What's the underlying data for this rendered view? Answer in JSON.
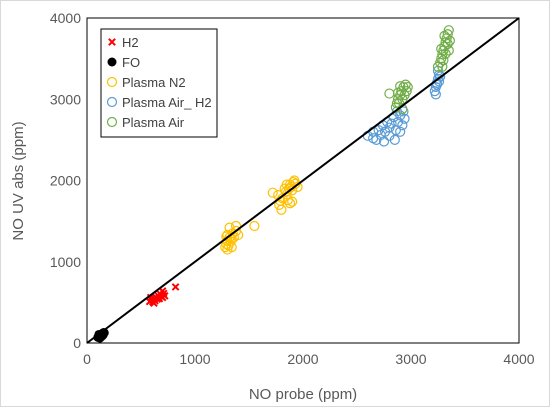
{
  "chart_data": {
    "type": "scatter",
    "title": "",
    "xlabel": "NO probe (ppm)",
    "ylabel": "NO UV abs (ppm)",
    "xlim": [
      0,
      4000
    ],
    "ylim": [
      0,
      4000
    ],
    "xticks": [
      "0",
      "1000",
      "2000",
      "3000",
      "4000"
    ],
    "yticks": [
      "0",
      "1000",
      "2000",
      "3000",
      "4000"
    ],
    "grid": false,
    "legend_position": "top-left inside",
    "reference_line": {
      "x": [
        0,
        4000
      ],
      "y": [
        0,
        4000
      ],
      "color": "#000000"
    },
    "series": [
      {
        "name": "H2",
        "marker": "x",
        "color": "#ff0000",
        "points": [
          [
            580,
            510
          ],
          [
            600,
            530
          ],
          [
            610,
            505
          ],
          [
            620,
            550
          ],
          [
            630,
            520
          ],
          [
            640,
            560
          ],
          [
            650,
            540
          ],
          [
            660,
            580
          ],
          [
            670,
            545
          ],
          [
            680,
            600
          ],
          [
            690,
            570
          ],
          [
            700,
            560
          ],
          [
            710,
            610
          ],
          [
            720,
            580
          ],
          [
            700,
            640
          ],
          [
            620,
            490
          ],
          [
            590,
            560
          ],
          [
            820,
            690
          ]
        ]
      },
      {
        "name": "FO",
        "marker": "filled-circle",
        "color": "#000000",
        "points": [
          [
            100,
            70
          ],
          [
            110,
            85
          ],
          [
            115,
            95
          ],
          [
            120,
            80
          ],
          [
            125,
            100
          ],
          [
            130,
            90
          ],
          [
            135,
            110
          ],
          [
            140,
            105
          ],
          [
            145,
            120
          ],
          [
            150,
            115
          ],
          [
            155,
            130
          ],
          [
            160,
            125
          ],
          [
            120,
            60
          ],
          [
            110,
            105
          ],
          [
            140,
            85
          ],
          [
            150,
            100
          ]
        ]
      },
      {
        "name": "Plasma N2",
        "marker": "open-circle",
        "color": "#ffc000",
        "points": [
          [
            1280,
            1180
          ],
          [
            1290,
            1220
          ],
          [
            1300,
            1260
          ],
          [
            1310,
            1200
          ],
          [
            1320,
            1300
          ],
          [
            1330,
            1250
          ],
          [
            1300,
            1330
          ],
          [
            1340,
            1280
          ],
          [
            1350,
            1350
          ],
          [
            1360,
            1300
          ],
          [
            1380,
            1380
          ],
          [
            1400,
            1330
          ],
          [
            1320,
            1420
          ],
          [
            1380,
            1440
          ],
          [
            1550,
            1440
          ],
          [
            1300,
            1150
          ],
          [
            1340,
            1180
          ],
          [
            1290,
            1310
          ],
          [
            1720,
            1850
          ],
          [
            1770,
            1820
          ],
          [
            1780,
            1700
          ],
          [
            1790,
            1750
          ],
          [
            1800,
            1640
          ],
          [
            1810,
            1780
          ],
          [
            1830,
            1900
          ],
          [
            1840,
            1860
          ],
          [
            1850,
            1830
          ],
          [
            1860,
            1760
          ],
          [
            1870,
            1900
          ],
          [
            1880,
            1950
          ],
          [
            1890,
            1920
          ],
          [
            1900,
            1880
          ],
          [
            1910,
            1980
          ],
          [
            1920,
            2000
          ],
          [
            1900,
            1740
          ],
          [
            1880,
            1720
          ],
          [
            1850,
            1950
          ],
          [
            1930,
            1960
          ],
          [
            1950,
            1920
          ]
        ]
      },
      {
        "name": "Plasma Air_ H2",
        "marker": "open-circle",
        "color": "#5b9bd5",
        "points": [
          [
            2600,
            2550
          ],
          [
            2650,
            2600
          ],
          [
            2680,
            2500
          ],
          [
            2700,
            2620
          ],
          [
            2720,
            2560
          ],
          [
            2740,
            2680
          ],
          [
            2760,
            2600
          ],
          [
            2780,
            2720
          ],
          [
            2800,
            2650
          ],
          [
            2820,
            2700
          ],
          [
            2840,
            2780
          ],
          [
            2860,
            2620
          ],
          [
            2880,
            2720
          ],
          [
            2900,
            2800
          ],
          [
            2920,
            2680
          ],
          [
            2940,
            2760
          ],
          [
            2750,
            2480
          ],
          [
            2800,
            2550
          ],
          [
            2850,
            2500
          ],
          [
            2650,
            2520
          ],
          [
            2900,
            2600
          ],
          [
            2870,
            2850
          ],
          [
            2930,
            2850
          ],
          [
            3220,
            3100
          ],
          [
            3230,
            3150
          ],
          [
            3240,
            3200
          ],
          [
            3250,
            3250
          ],
          [
            3260,
            3300
          ],
          [
            3250,
            3350
          ],
          [
            3240,
            3180
          ],
          [
            3260,
            3220
          ],
          [
            3270,
            3280
          ],
          [
            3230,
            3060
          ]
        ]
      },
      {
        "name": "Plasma Air",
        "marker": "open-circle",
        "color": "#70ad47",
        "points": [
          [
            2860,
            2900
          ],
          [
            2870,
            2950
          ],
          [
            2880,
            3000
          ],
          [
            2890,
            2950
          ],
          [
            2900,
            3050
          ],
          [
            2910,
            3100
          ],
          [
            2920,
            3000
          ],
          [
            2930,
            3150
          ],
          [
            2940,
            3050
          ],
          [
            2950,
            3180
          ],
          [
            2960,
            3100
          ],
          [
            2970,
            3150
          ],
          [
            2900,
            3160
          ],
          [
            2880,
            3080
          ],
          [
            2800,
            3070
          ],
          [
            2920,
            2880
          ],
          [
            3250,
            3400
          ],
          [
            3270,
            3450
          ],
          [
            3280,
            3500
          ],
          [
            3290,
            3550
          ],
          [
            3300,
            3600
          ],
          [
            3310,
            3650
          ],
          [
            3320,
            3700
          ],
          [
            3330,
            3750
          ],
          [
            3340,
            3800
          ],
          [
            3350,
            3850
          ],
          [
            3300,
            3480
          ],
          [
            3280,
            3620
          ],
          [
            3320,
            3560
          ],
          [
            3340,
            3680
          ],
          [
            3360,
            3720
          ],
          [
            3290,
            3400
          ],
          [
            3310,
            3780
          ],
          [
            3350,
            3600
          ]
        ]
      }
    ]
  }
}
